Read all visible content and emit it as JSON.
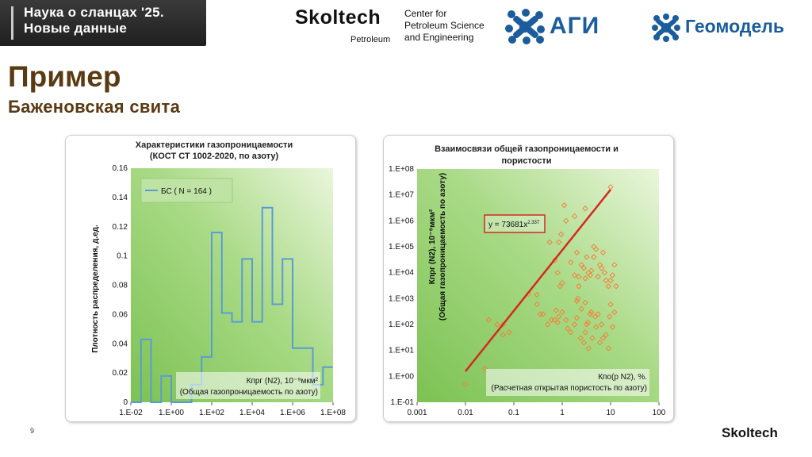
{
  "header": {
    "conference_line1": "Наука о сланцах '25.",
    "conference_line2": "Новые данные",
    "skoltech_word": "Skoltech",
    "skoltech_sub": "Petroleum",
    "center_line1": "Center for",
    "center_line2": "Petroleum Science",
    "center_line3": "and Engineering",
    "agi_text": "АГИ",
    "geo_text": "Геомодель"
  },
  "slide": {
    "title": "Пример",
    "subtitle": "Баженовская свита",
    "page_number": "9",
    "footer_logo": "Skoltech"
  },
  "colors": {
    "plot_bg": "#9fd47a",
    "plot_light": "#e6f5d6",
    "hist_line": "#5b9bd5",
    "scatter_marker": "#f0843c",
    "trend_line": "#d32a1e",
    "title_brown": "#5a3a12"
  },
  "chart_data": [
    {
      "type": "line",
      "title_line1": "Характеристики газопроницаемости",
      "title_line2": "(КОСТ СТ 1002-2020, по азоту)",
      "ylabel": "Плотность распределения, д.ед.",
      "xlabel_line1": "Кпрг (N2), 10⁻⁹мкм²",
      "xlabel_line2": "(Общая газопроницаемость по азоту)",
      "legend": "БС ( N = 164 )",
      "x_scale": "log",
      "x_ticks": [
        "1.E-02",
        "1.E+00",
        "1.E+02",
        "1.E+04",
        "1.E+06",
        "1.E+08"
      ],
      "y_ticks": [
        "0",
        "0.02",
        "0.04",
        "0.06",
        "0.08",
        "0.1",
        "0.12",
        "0.14",
        "0.16"
      ],
      "xlim": [
        -2,
        8
      ],
      "ylim": [
        0,
        0.16
      ],
      "series": [
        {
          "name": "БС ( N = 164 )",
          "bin_edges_log10": [
            -2,
            -1.5,
            -1,
            -0.5,
            0,
            0.5,
            1,
            1.5,
            2,
            2.5,
            3,
            3.5,
            4,
            4.5,
            5,
            5.5,
            6,
            6.5,
            7,
            7.5,
            8
          ],
          "values": [
            0,
            0.043,
            0,
            0.018,
            0,
            0,
            0.012,
            0.031,
            0.116,
            0.061,
            0.055,
            0.098,
            0.055,
            0.133,
            0.067,
            0.098,
            0.037,
            0.037,
            0.012,
            0.024
          ]
        }
      ]
    },
    {
      "type": "scatter",
      "title_line1": "Взаимосвязи общей газопроницаемости и",
      "title_line2": "пористости",
      "ylabel_line1": "Кпрг (N2), 10⁻⁹мкм²",
      "ylabel_line2": "(Общая газопроницаемость по азоту)",
      "xlabel_line1": "Кпо(р N2), %.",
      "xlabel_line2": "(Расчетная открытая пористость по азоту)",
      "equation": "y = 73681x",
      "equation_exp": "2.337",
      "x_scale": "log",
      "y_scale": "log",
      "x_ticks": [
        "0.001",
        "0.01",
        "0.1",
        "1",
        "10",
        "100"
      ],
      "y_ticks": [
        "1.E-01",
        "1.E+00",
        "1.E+01",
        "1.E+02",
        "1.E+03",
        "1.E+04",
        "1.E+05",
        "1.E+06",
        "1.E+07",
        "1.E+08"
      ],
      "xlim": [
        0.001,
        100
      ],
      "ylim": [
        0.1,
        100000000
      ],
      "trendline": {
        "a": 73681,
        "b": 2.337,
        "x_from": 0.01,
        "x_to": 10
      },
      "points": [
        [
          0.01,
          0.5
        ],
        [
          0.025,
          2
        ],
        [
          0.03,
          150
        ],
        [
          0.045,
          100
        ],
        [
          0.06,
          100
        ],
        [
          0.06,
          40
        ],
        [
          0.08,
          50
        ],
        [
          0.2,
          1500
        ],
        [
          0.3,
          1400
        ],
        [
          0.3,
          600
        ],
        [
          0.35,
          250
        ],
        [
          0.4,
          250
        ],
        [
          0.5,
          100
        ],
        [
          0.6,
          150
        ],
        [
          0.7,
          150
        ],
        [
          0.75,
          350
        ],
        [
          0.8,
          120
        ],
        [
          0.85,
          200
        ],
        [
          0.9,
          3000
        ],
        [
          1,
          4000
        ],
        [
          1.2,
          150
        ],
        [
          1.3,
          70
        ],
        [
          1.5,
          50
        ],
        [
          1.8,
          100
        ],
        [
          2,
          180
        ],
        [
          2.1,
          1000
        ],
        [
          2.2,
          3000
        ],
        [
          2.4,
          30
        ],
        [
          2.5,
          400
        ],
        [
          2.8,
          20
        ],
        [
          3,
          50
        ],
        [
          3,
          700
        ],
        [
          3.2,
          100
        ],
        [
          3.4,
          120
        ],
        [
          3.5,
          12
        ],
        [
          3.8,
          250
        ],
        [
          4,
          300
        ],
        [
          4.2,
          30
        ],
        [
          4.5,
          40000
        ],
        [
          4.8,
          200
        ],
        [
          5,
          80
        ],
        [
          5.5,
          250
        ],
        [
          6,
          20
        ],
        [
          6.5,
          100
        ],
        [
          7,
          30
        ],
        [
          8,
          40
        ],
        [
          9,
          12
        ],
        [
          9.5,
          200
        ],
        [
          10,
          600
        ],
        [
          11,
          80
        ],
        [
          12,
          300
        ],
        [
          0.55,
          150000
        ],
        [
          0.7,
          30000
        ],
        [
          0.8,
          10000
        ],
        [
          0.95,
          300000
        ],
        [
          1.2,
          1000000
        ],
        [
          1.5,
          25000
        ],
        [
          1.8,
          8000
        ],
        [
          2,
          60000
        ],
        [
          2.2,
          7000
        ],
        [
          2.5,
          20000
        ],
        [
          2.8,
          15000
        ],
        [
          3,
          6000
        ],
        [
          3.2,
          40000
        ],
        [
          3.5,
          10000
        ],
        [
          3.8,
          8000
        ],
        [
          4,
          12000
        ],
        [
          4.5,
          100000
        ],
        [
          5,
          80000
        ],
        [
          5.5,
          7000
        ],
        [
          6,
          20000
        ],
        [
          6.5,
          15000
        ],
        [
          7,
          60000
        ],
        [
          7.5,
          10000
        ],
        [
          8,
          5000
        ],
        [
          9,
          3000
        ],
        [
          10,
          5000
        ],
        [
          11,
          8000
        ],
        [
          12,
          20000
        ],
        [
          13,
          3000
        ],
        [
          10,
          20000000
        ],
        [
          1.1,
          4000000
        ],
        [
          1.8,
          1500000
        ],
        [
          0.85,
          150000
        ],
        [
          3,
          3000000
        ],
        [
          2,
          800
        ],
        [
          1,
          300
        ]
      ]
    }
  ]
}
